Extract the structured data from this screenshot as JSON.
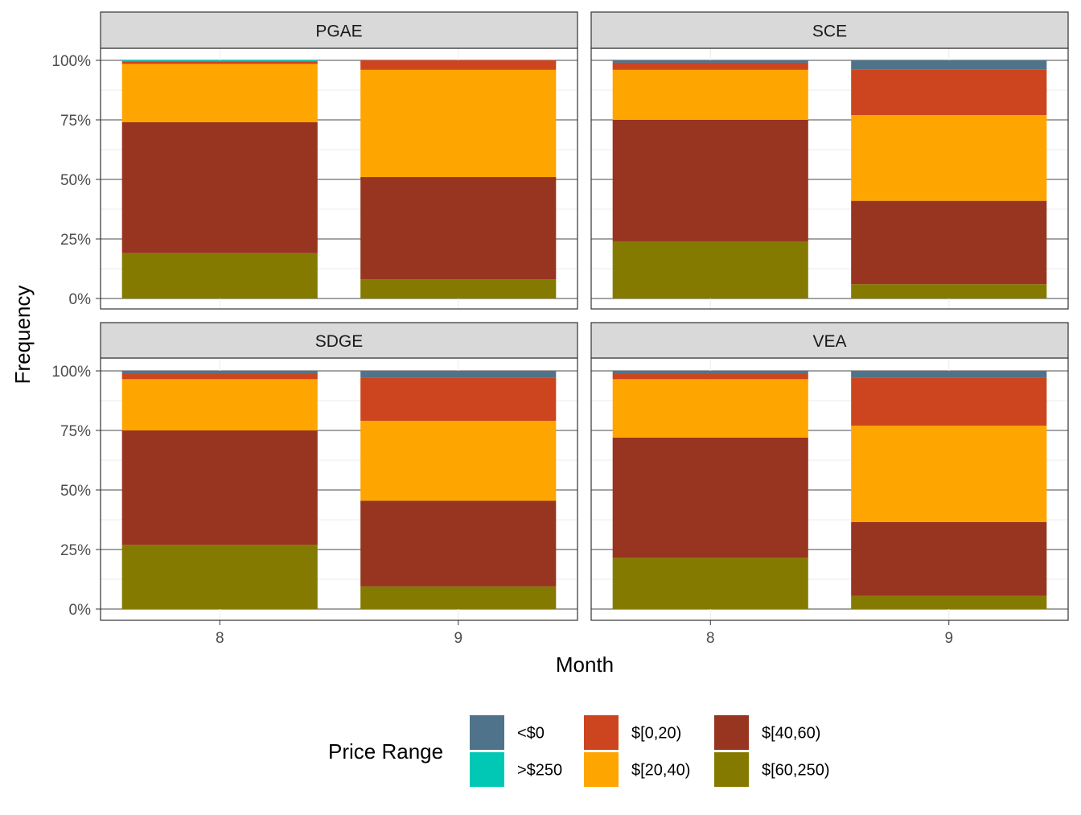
{
  "chart_data": {
    "type": "bar",
    "stacked": "percent",
    "xlabel": "Month",
    "ylabel": "Frequency",
    "ylim": [
      0,
      1
    ],
    "y_ticks": [
      "0%",
      "25%",
      "50%",
      "75%",
      "100%"
    ],
    "categories": [
      "8",
      "9"
    ],
    "legend": {
      "title": "Price Range",
      "position": "bottom",
      "items": [
        {
          "name": "<$0",
          "color": "#50738c"
        },
        {
          "name": ">$250",
          "color": "#00c8b4"
        },
        {
          "name": "$[0,20)",
          "color": "#cd451e"
        },
        {
          "name": "$[20,40)",
          "color": "#ffa500"
        },
        {
          "name": "$[40,60)",
          "color": "#973520"
        },
        {
          "name": "$[60,250)",
          "color": "#857a00"
        }
      ]
    },
    "stack_order_bottom_to_top": [
      "$[60,250)",
      "$[40,60)",
      "$[20,40)",
      "$[0,20)",
      ">$250",
      "<$0"
    ],
    "panels": [
      {
        "title": "PGAE",
        "series": [
          {
            "name": "$[60,250)",
            "values": [
              0.19,
              0.08
            ]
          },
          {
            "name": "$[40,60)",
            "values": [
              0.55,
              0.43
            ]
          },
          {
            "name": "$[20,40)",
            "values": [
              0.245,
              0.45
            ]
          },
          {
            "name": "$[0,20)",
            "values": [
              0.01,
              0.04
            ]
          },
          {
            "name": ">$250",
            "values": [
              0.005,
              0.0
            ]
          },
          {
            "name": "<$0",
            "values": [
              0.0,
              0.0
            ]
          }
        ]
      },
      {
        "title": "SCE",
        "series": [
          {
            "name": "$[60,250)",
            "values": [
              0.24,
              0.06
            ]
          },
          {
            "name": "$[40,60)",
            "values": [
              0.51,
              0.35
            ]
          },
          {
            "name": "$[20,40)",
            "values": [
              0.21,
              0.36
            ]
          },
          {
            "name": "$[0,20)",
            "values": [
              0.03,
              0.19
            ]
          },
          {
            "name": ">$250",
            "values": [
              0.0,
              0.0
            ]
          },
          {
            "name": "<$0",
            "values": [
              0.01,
              0.04
            ]
          }
        ]
      },
      {
        "title": "SDGE",
        "series": [
          {
            "name": "$[60,250)",
            "values": [
              0.27,
              0.095
            ]
          },
          {
            "name": "$[40,60)",
            "values": [
              0.48,
              0.36
            ]
          },
          {
            "name": "$[20,40)",
            "values": [
              0.215,
              0.335
            ]
          },
          {
            "name": "$[0,20)",
            "values": [
              0.025,
              0.18
            ]
          },
          {
            "name": ">$250",
            "values": [
              0.0,
              0.0
            ]
          },
          {
            "name": "<$0",
            "values": [
              0.01,
              0.03
            ]
          }
        ]
      },
      {
        "title": "VEA",
        "series": [
          {
            "name": "$[60,250)",
            "values": [
              0.215,
              0.055
            ]
          },
          {
            "name": "$[40,60)",
            "values": [
              0.505,
              0.31
            ]
          },
          {
            "name": "$[20,40)",
            "values": [
              0.245,
              0.405
            ]
          },
          {
            "name": "$[0,20)",
            "values": [
              0.025,
              0.2
            ]
          },
          {
            "name": ">$250",
            "values": [
              0.0,
              0.0
            ]
          },
          {
            "name": "<$0",
            "values": [
              0.01,
              0.03
            ]
          }
        ]
      }
    ]
  }
}
